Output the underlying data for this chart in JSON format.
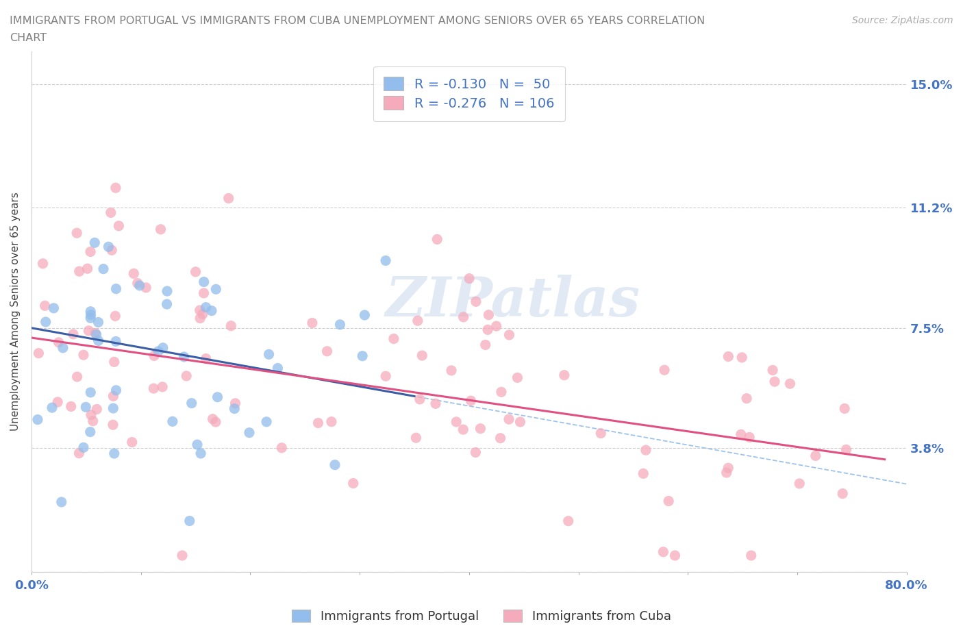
{
  "title": "IMMIGRANTS FROM PORTUGAL VS IMMIGRANTS FROM CUBA UNEMPLOYMENT AMONG SENIORS OVER 65 YEARS CORRELATION\nCHART",
  "source": "Source: ZipAtlas.com",
  "ylabel": "Unemployment Among Seniors over 65 years",
  "xlim": [
    0.0,
    0.8
  ],
  "ylim": [
    0.0,
    0.16
  ],
  "xtick_positions": [
    0.0,
    0.1,
    0.2,
    0.3,
    0.4,
    0.5,
    0.6,
    0.7,
    0.8
  ],
  "xticklabels": [
    "0.0%",
    "",
    "",
    "",
    "",
    "",
    "",
    "",
    "80.0%"
  ],
  "ytick_positions": [
    0.0,
    0.038,
    0.075,
    0.112,
    0.15
  ],
  "ytick_labels": [
    "",
    "3.8%",
    "7.5%",
    "11.2%",
    "15.0%"
  ],
  "portugal_color": "#92BDEC",
  "cuba_color": "#F5ABBB",
  "portugal_line_color": "#3B5EA6",
  "cuba_line_color": "#E05080",
  "portugal_dash_color": "#92BDEC",
  "R_portugal": -0.13,
  "N_portugal": 50,
  "R_cuba": -0.276,
  "N_cuba": 106,
  "watermark": "ZIPatlas",
  "background_color": "#FFFFFF",
  "grid_color": "#CCCCCC",
  "tick_label_color": "#4472C4",
  "title_color": "#808080",
  "port_intercept": 0.075,
  "port_slope": -0.06,
  "cuba_intercept": 0.072,
  "cuba_slope": -0.048
}
